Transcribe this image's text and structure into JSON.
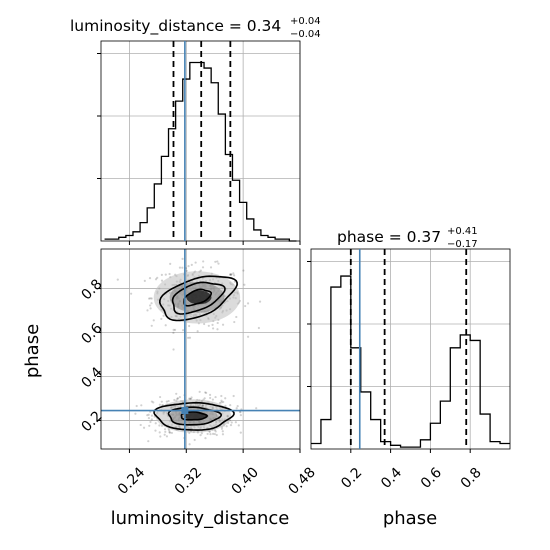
{
  "chart_data": [
    {
      "type": "histogram",
      "panel": "luminosity_distance marginal",
      "title_param": "luminosity_distance",
      "title_median": "0.34",
      "title_plus": "+0.04",
      "title_minus": "−0.04",
      "xlim": [
        0.2,
        0.48
      ],
      "bin_edges": [
        0.205,
        0.215,
        0.225,
        0.235,
        0.245,
        0.255,
        0.265,
        0.275,
        0.285,
        0.295,
        0.305,
        0.315,
        0.325,
        0.335,
        0.345,
        0.355,
        0.365,
        0.375,
        0.385,
        0.395,
        0.405,
        0.415,
        0.425,
        0.435,
        0.445,
        0.455,
        0.465,
        0.475
      ],
      "counts": [
        0.01,
        0.01,
        0.02,
        0.03,
        0.05,
        0.1,
        0.18,
        0.31,
        0.46,
        0.61,
        0.76,
        0.88,
        0.97,
        0.97,
        0.94,
        0.86,
        0.69,
        0.47,
        0.33,
        0.21,
        0.12,
        0.06,
        0.03,
        0.02,
        0.01,
        0.01,
        0.0
      ],
      "quantiles": [
        0.302,
        0.341,
        0.382
      ],
      "truth": 0.318,
      "grid": true
    },
    {
      "type": "histogram",
      "panel": "phase marginal",
      "title_param": "phase",
      "title_median": "0.37",
      "title_plus": "+0.41",
      "title_minus": "−0.17",
      "xlim": [
        0.0,
        1.0
      ],
      "bin_edges": [
        0.0,
        0.05,
        0.1,
        0.15,
        0.2,
        0.25,
        0.3,
        0.35,
        0.4,
        0.45,
        0.5,
        0.55,
        0.6,
        0.65,
        0.7,
        0.75,
        0.8,
        0.85,
        0.9,
        0.95,
        1.0
      ],
      "counts": [
        0.03,
        0.16,
        0.88,
        0.94,
        0.55,
        0.31,
        0.16,
        0.04,
        0.02,
        0.01,
        0.01,
        0.05,
        0.14,
        0.26,
        0.55,
        0.62,
        0.59,
        0.19,
        0.04,
        0.03
      ],
      "quantiles": [
        0.2,
        0.37,
        0.78
      ],
      "truth": 0.245,
      "grid": true
    },
    {
      "type": "scatter",
      "panel": "2D posterior",
      "xlabel": "luminosity_distance",
      "ylabel": "phase",
      "xlim": [
        0.2,
        0.48
      ],
      "ylim": [
        0.07,
        0.98
      ],
      "xticks": [
        "0.24",
        "0.32",
        "0.40",
        "0.48"
      ],
      "xtick_values": [
        0.24,
        0.32,
        0.4,
        0.48
      ],
      "yticks": [
        "0.2",
        "0.4",
        "0.6",
        "0.8"
      ],
      "ytick_values": [
        0.2,
        0.4,
        0.6,
        0.8
      ],
      "phase_xticks": [
        "0.2",
        "0.4",
        "0.6",
        "0.8"
      ],
      "phase_xtick_values": [
        0.2,
        0.4,
        0.6,
        0.8
      ],
      "clusters": [
        {
          "center": [
            0.335,
            0.76
          ],
          "spread": [
            0.032,
            0.07
          ],
          "weight": 0.45
        },
        {
          "center": [
            0.33,
            0.22
          ],
          "spread": [
            0.028,
            0.045
          ],
          "weight": 0.55
        }
      ],
      "contour_levels": [
        {
          "level": 1,
          "radii": [
            0.02,
            0.03
          ]
        },
        {
          "level": 2,
          "radii": [
            0.038,
            0.06
          ]
        },
        {
          "level": 3,
          "radii": [
            0.055,
            0.085
          ]
        },
        {
          "level": 1,
          "radii": [
            0.018,
            0.018
          ]
        },
        {
          "level": 2,
          "radii": [
            0.036,
            0.04
          ]
        },
        {
          "level": 3,
          "radii": [
            0.054,
            0.062
          ]
        }
      ],
      "truth": [
        0.318,
        0.245
      ],
      "grid": true
    }
  ],
  "colors": {
    "truth": "#4682b4",
    "hist": "#000000",
    "grid": "#b0b0b0",
    "points": "#000000"
  }
}
